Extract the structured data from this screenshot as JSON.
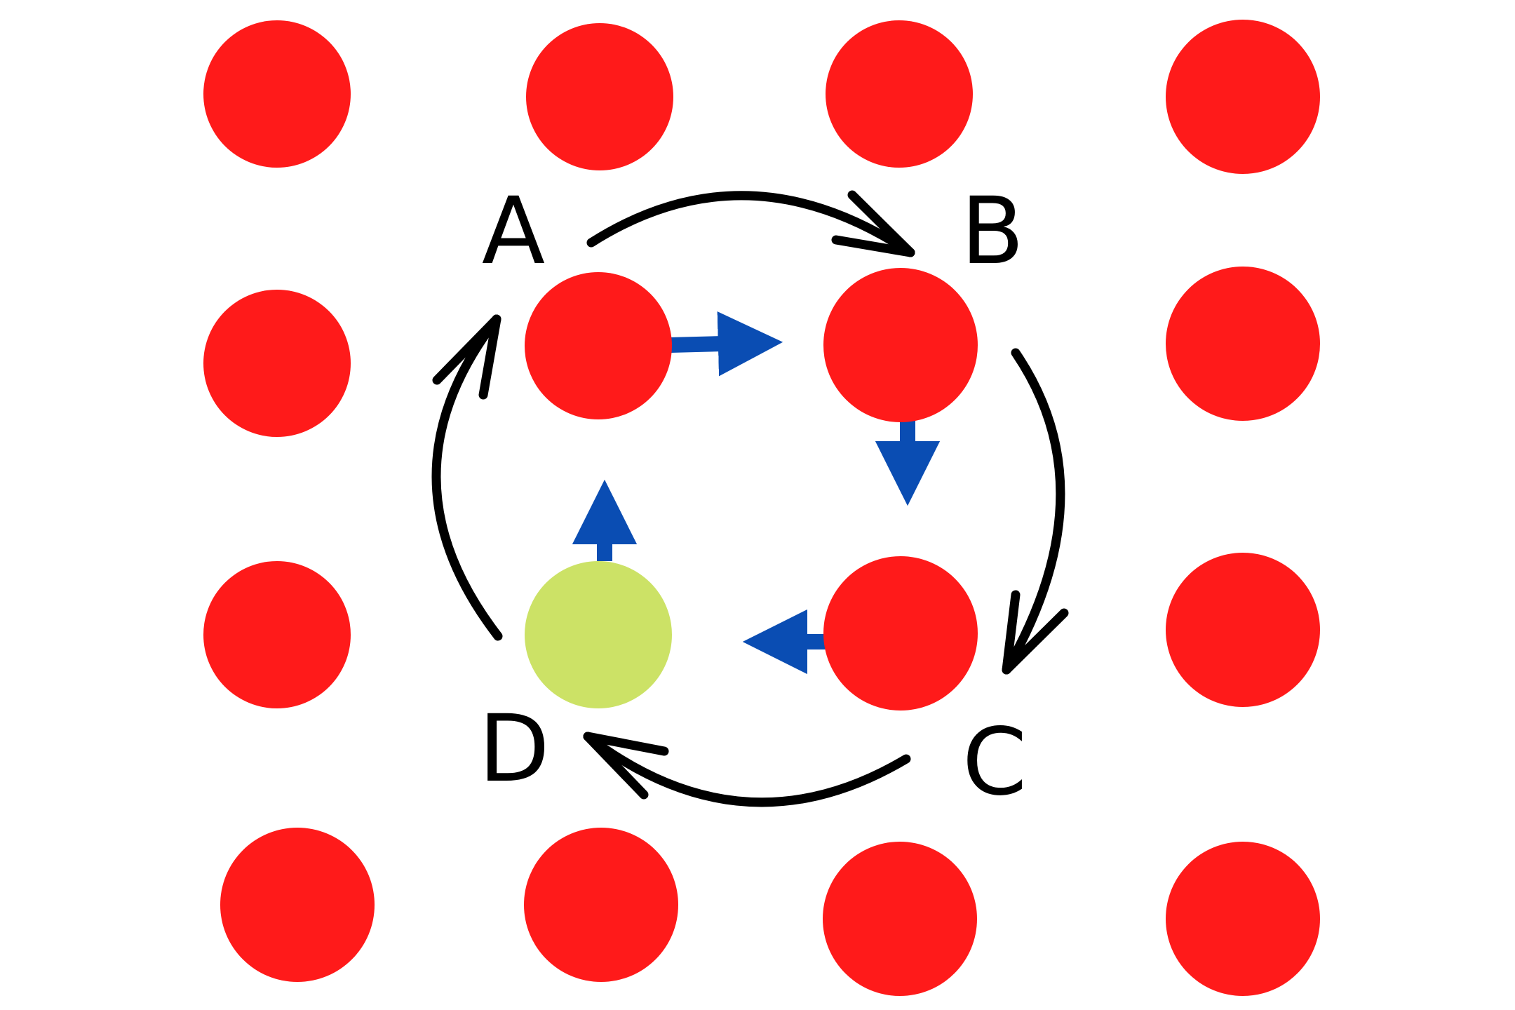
{
  "labels": {
    "a": "A",
    "b": "B",
    "c": "C",
    "d": "D"
  },
  "colors": {
    "atom": "#ff1a1a",
    "vacancy": "#cce266",
    "displacement_arrow": "#0a4db3",
    "cycle_arrow": "#000000",
    "background": "#ffffff"
  },
  "icons": {
    "cycle": "curved-arrow-icon",
    "displacement": "straight-arrow-icon"
  }
}
